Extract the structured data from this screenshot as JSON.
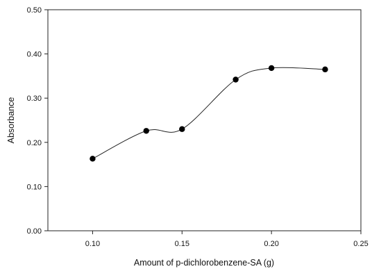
{
  "chart_data": {
    "type": "line",
    "xlabel": "Amount of p-dichlorobenzene-SA (g)",
    "ylabel": "Absorbance",
    "xlim": [
      0.075,
      0.25
    ],
    "ylim": [
      0.0,
      0.5
    ],
    "x_ticks": [
      {
        "value": 0.1,
        "label": "0.10"
      },
      {
        "value": 0.15,
        "label": "0.15"
      },
      {
        "value": 0.2,
        "label": "0.20"
      },
      {
        "value": 0.25,
        "label": "0.25"
      }
    ],
    "y_ticks": [
      {
        "value": 0.0,
        "label": "0.00"
      },
      {
        "value": 0.1,
        "label": "0.10"
      },
      {
        "value": 0.2,
        "label": "0.20"
      },
      {
        "value": 0.3,
        "label": "0.30"
      },
      {
        "value": 0.4,
        "label": "0.40"
      },
      {
        "value": 0.5,
        "label": "0.50"
      }
    ],
    "series": [
      {
        "x": [
          0.1,
          0.13,
          0.15,
          0.18,
          0.2,
          0.23
        ],
        "y": [
          0.163,
          0.226,
          0.23,
          0.342,
          0.368,
          0.365
        ]
      }
    ],
    "line_style": "smooth",
    "marker": "filled-circle",
    "grid": false,
    "colors": {
      "line": "#222222",
      "marker": "#000000",
      "axis": "#222222"
    }
  }
}
